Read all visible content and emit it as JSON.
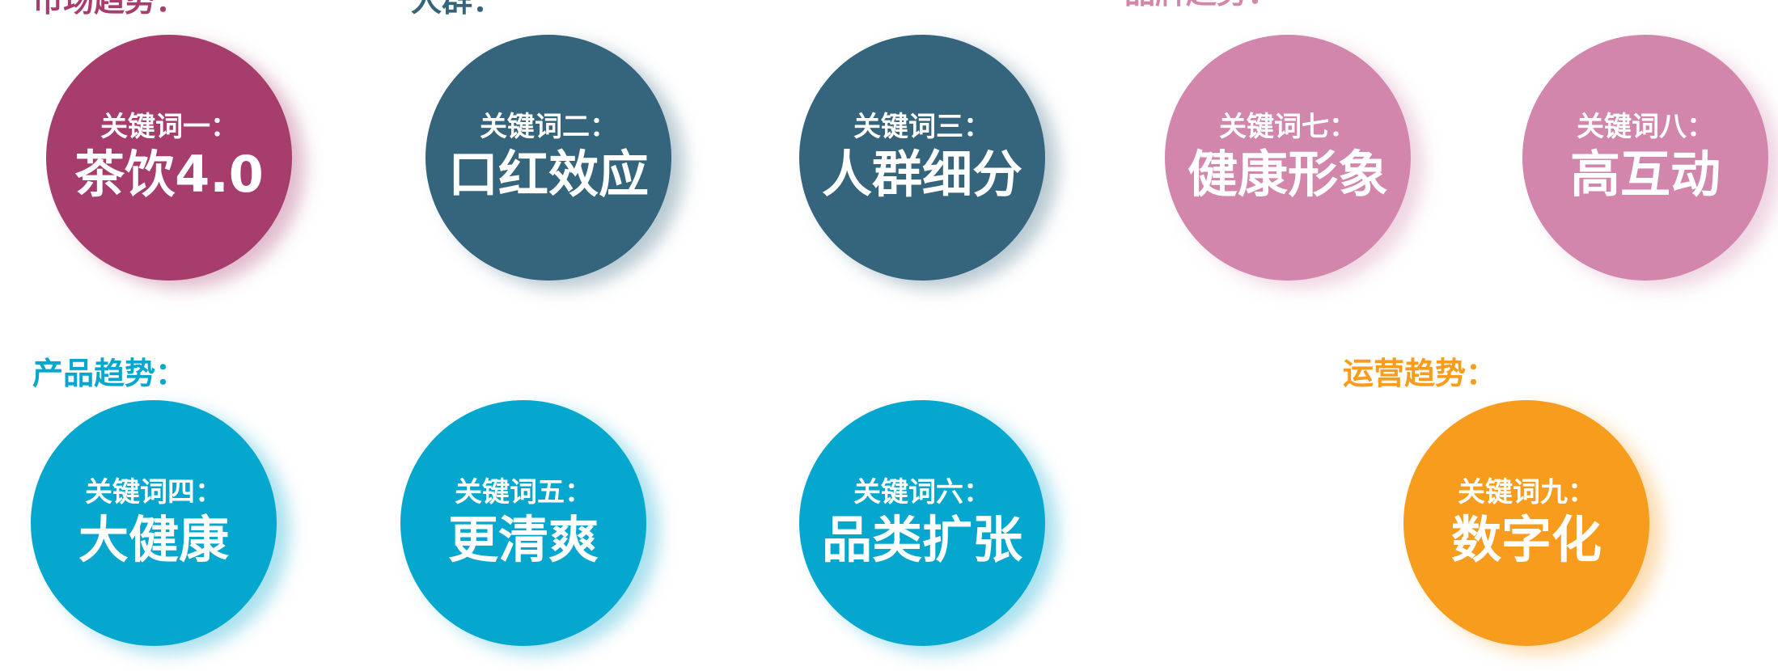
{
  "sections": {
    "market": {
      "label": "市场趋势：",
      "color": "#a63d6d"
    },
    "crowd": {
      "label": "人群：",
      "color": "#35647d"
    },
    "brand": {
      "label": "品牌趋势：",
      "color": "#d286ab"
    },
    "product": {
      "label": "产品趋势：",
      "color": "#06a7cf"
    },
    "operation": {
      "label": "运营趋势：",
      "color": "#f79c1c"
    }
  },
  "keywords": [
    {
      "label": "关键词一：",
      "term": "茶饮4.0"
    },
    {
      "label": "关键词二：",
      "term": "口红效应"
    },
    {
      "label": "关键词三：",
      "term": "人群细分"
    },
    {
      "label": "关键词七：",
      "term": "健康形象"
    },
    {
      "label": "关键词八：",
      "term": "高互动"
    },
    {
      "label": "关键词四：",
      "term": "大健康"
    },
    {
      "label": "关键词五：",
      "term": "更清爽"
    },
    {
      "label": "关键词六：",
      "term": "品类扩张"
    },
    {
      "label": "关键词九：",
      "term": "数字化"
    }
  ]
}
